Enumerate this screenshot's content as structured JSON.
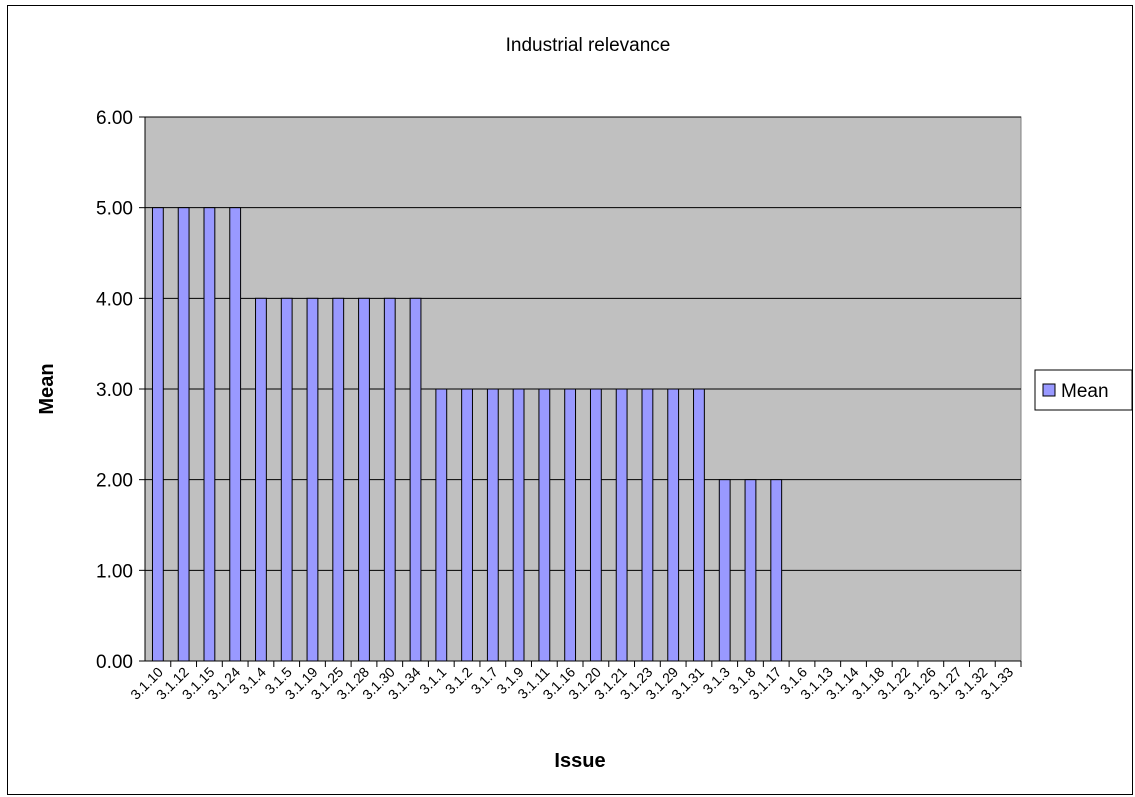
{
  "chart_data": {
    "type": "bar",
    "title": "Industrial relevance",
    "xlabel": "Issue",
    "ylabel": "Mean",
    "ylim": [
      0,
      6
    ],
    "yticks": [
      "0.00",
      "1.00",
      "2.00",
      "3.00",
      "4.00",
      "5.00",
      "6.00"
    ],
    "grid": true,
    "legend_position": "right",
    "categories": [
      "3.1.10",
      "3.1.12",
      "3.1.15",
      "3.1.24",
      "3.1.4",
      "3.1.5",
      "3.1.19",
      "3.1.25",
      "3.1.28",
      "3.1.30",
      "3.1.34",
      "3.1.1",
      "3.1.2",
      "3.1.7",
      "3.1.9",
      "3.1.11",
      "3.1.16",
      "3.1.20",
      "3.1.21",
      "3.1.23",
      "3.1.29",
      "3.1.31",
      "3.1.3",
      "3.1.8",
      "3.1.17",
      "3.1.6",
      "3.1.13",
      "3.1.14",
      "3.1.18",
      "3.1.22",
      "3.1.26",
      "3.1.27",
      "3.1.32",
      "3.1.33"
    ],
    "series": [
      {
        "name": "Mean",
        "color": "#9999ff",
        "values": [
          5,
          5,
          5,
          5,
          4,
          4,
          4,
          4,
          4,
          4,
          4,
          3,
          3,
          3,
          3,
          3,
          3,
          3,
          3,
          3,
          3,
          3,
          2,
          2,
          2,
          0,
          0,
          0,
          0,
          0,
          0,
          0,
          0,
          0
        ]
      }
    ],
    "plot_background": "#c0c0c0"
  }
}
